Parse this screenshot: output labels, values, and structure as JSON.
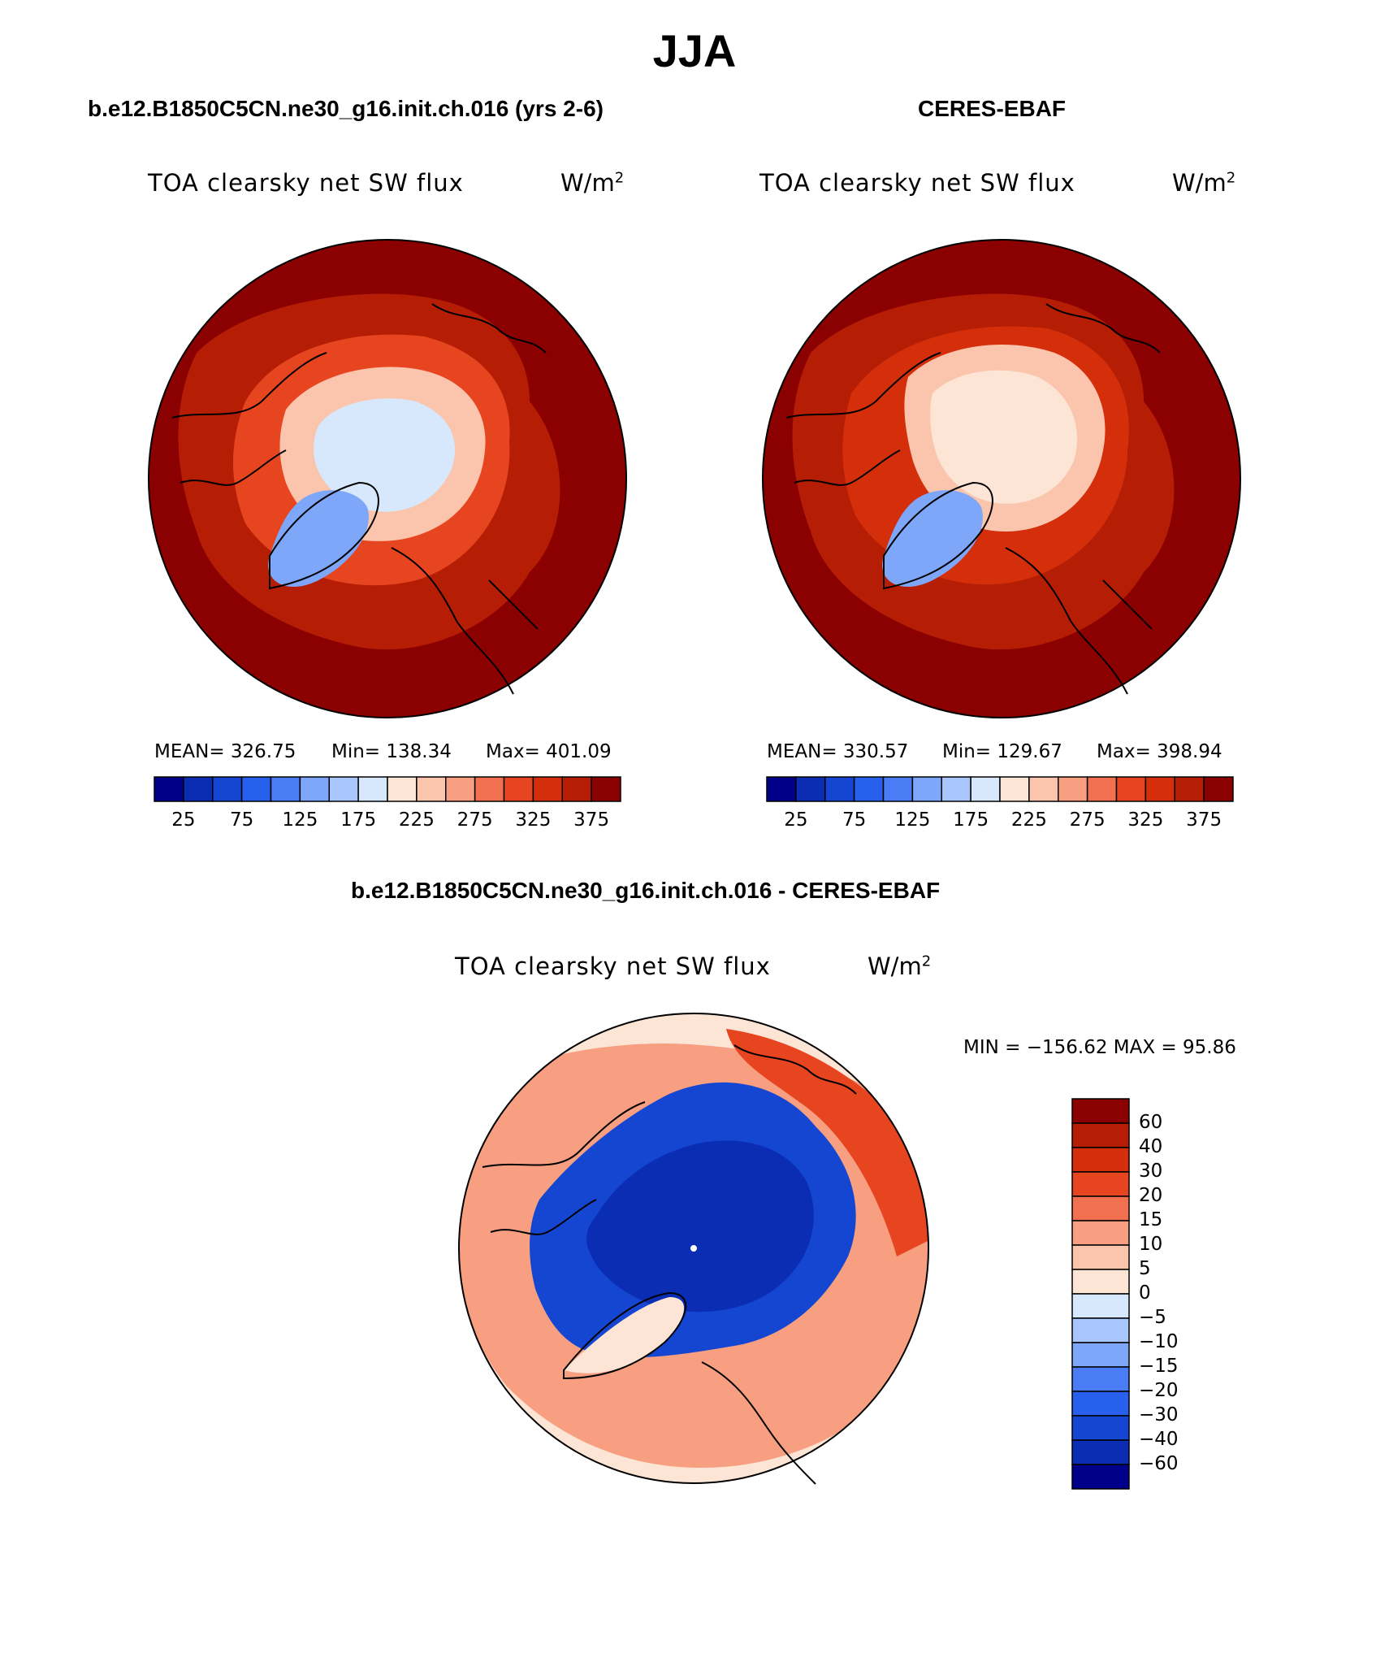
{
  "season": "JJA",
  "panels": {
    "model": {
      "case_title": "b.e12.B1850C5CN.ne30_g16.init.ch.016 (yrs 2-6)",
      "plot_title": "TOA clearsky net SW flux",
      "units_base": "W/m",
      "units_exp": "2",
      "mean_text": "MEAN= 326.75",
      "min_text": "Min= 138.34",
      "max_text": "Max= 401.09"
    },
    "obs": {
      "case_title": "CERES-EBAF",
      "plot_title": "TOA clearsky net SW flux",
      "units_base": "W/m",
      "units_exp": "2",
      "mean_text": "MEAN= 330.57",
      "min_text": "Min= 129.67",
      "max_text": "Max= 398.94"
    },
    "diff": {
      "case_title": "b.e12.B1850C5CN.ne30_g16.init.ch.016 - CERES-EBAF",
      "plot_title": "TOA clearsky net SW flux",
      "units_base": "W/m",
      "units_exp": "2",
      "minmax_text": "MIN = −156.62  MAX =   95.86"
    }
  },
  "colorbars": {
    "abs_colors": [
      "#00008b",
      "#0a2db4",
      "#1446d2",
      "#2860ee",
      "#4a7df5",
      "#7ea7fa",
      "#a8c6fb",
      "#d7e8fc",
      "#fde5d6",
      "#fbc5ad",
      "#f79f80",
      "#f1704f",
      "#e7451f",
      "#d42f0a",
      "#b51e05",
      "#8b0000"
    ],
    "abs_ticks": [
      "25",
      "75",
      "125",
      "175",
      "225",
      "275",
      "325",
      "375"
    ],
    "diff_colors": [
      "#8b0000",
      "#b51e05",
      "#d42f0a",
      "#e7451f",
      "#f1704f",
      "#f79f80",
      "#fbc5ad",
      "#fde5d6",
      "#d7e8fc",
      "#a8c6fb",
      "#7ea7fa",
      "#4a7df5",
      "#2860ee",
      "#1446d2",
      "#0a2db4",
      "#00008b"
    ],
    "diff_ticks": [
      "60",
      "40",
      "30",
      "20",
      "15",
      "10",
      "5",
      "0",
      "−5",
      "−10",
      "−15",
      "−20",
      "−30",
      "−40",
      "−60"
    ]
  },
  "map_colors": {
    "model": {
      "outer": "#8b0000",
      "mid": "#b51e05",
      "inner": "#e7451f",
      "ring": "#fbc5ad",
      "ice": "#d7e8fc",
      "greenland": "#7ea7fa"
    },
    "obs": {
      "outer": "#8b0000",
      "mid": "#b51e05",
      "inner": "#d42f0a",
      "ring": "#fbc5ad",
      "ice": "#fde5d6",
      "greenland": "#7ea7fa"
    },
    "diff": {
      "outer": "#fde5d6",
      "mid": "#f79f80",
      "inner": "#e7451f",
      "core": "#1446d2",
      "deep": "#0a2db4",
      "greenland": "#fde5d6"
    }
  }
}
